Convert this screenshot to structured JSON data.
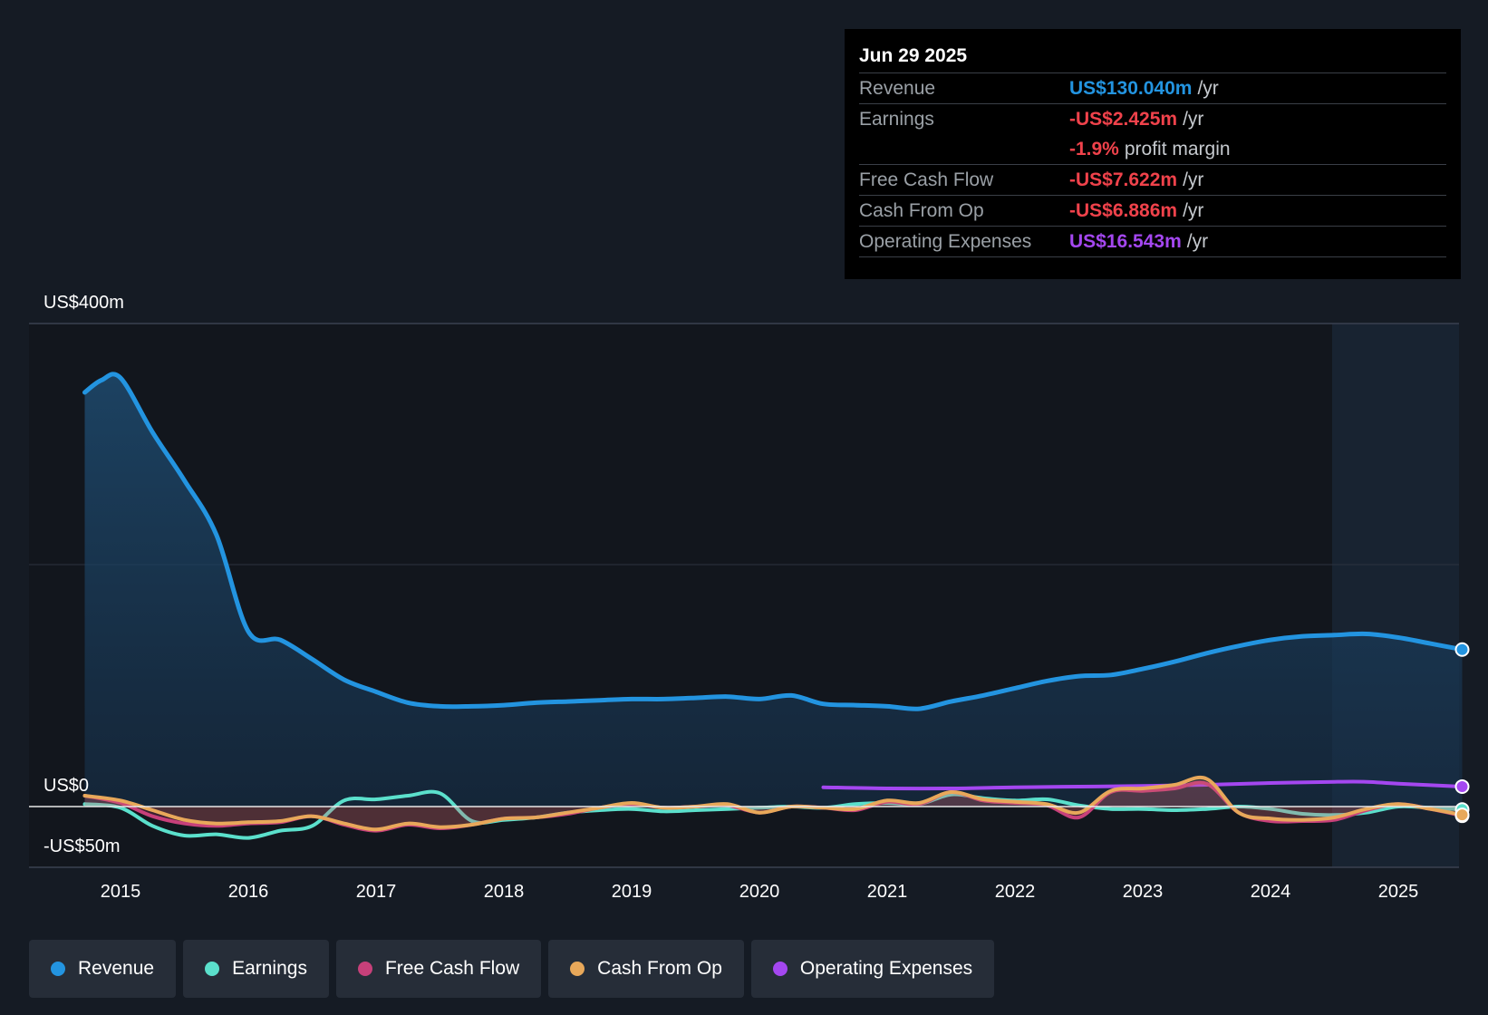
{
  "tooltip": {
    "date": "Jun 29 2025",
    "rows": [
      {
        "label": "Revenue",
        "value": "US$130.040m",
        "unit": "/yr",
        "color": "#2394e0"
      },
      {
        "label": "Earnings",
        "value": "-US$2.425m",
        "unit": "/yr",
        "color": "#f0424b"
      },
      {
        "label": "",
        "value": "-1.9%",
        "unit": "profit margin",
        "color": "#f0424b"
      },
      {
        "label": "Free Cash Flow",
        "value": "-US$7.622m",
        "unit": "/yr",
        "color": "#f0424b"
      },
      {
        "label": "Cash From Op",
        "value": "-US$6.886m",
        "unit": "/yr",
        "color": "#f0424b"
      },
      {
        "label": "Operating Expenses",
        "value": "US$16.543m",
        "unit": "/yr",
        "color": "#a447f0"
      }
    ]
  },
  "legend": [
    {
      "label": "Revenue",
      "color": "#2394e0"
    },
    {
      "label": "Earnings",
      "color": "#5be0cc"
    },
    {
      "label": "Free Cash Flow",
      "color": "#c7407a"
    },
    {
      "label": "Cash From Op",
      "color": "#e8a85a"
    },
    {
      "label": "Operating Expenses",
      "color": "#a447f0"
    }
  ],
  "chart_data": {
    "type": "line",
    "y_tick_labels": [
      "US$400m",
      "US$0",
      "-US$50m"
    ],
    "ylim": [
      -50,
      400
    ],
    "xlim": [
      2014.27,
      2025.5
    ],
    "x_ticks": [
      "2015",
      "2016",
      "2017",
      "2018",
      "2019",
      "2020",
      "2021",
      "2022",
      "2023",
      "2024",
      "2025"
    ],
    "grid": true,
    "legend_position": "bottom",
    "series": [
      {
        "name": "Revenue",
        "color": "#2394e0",
        "area": true,
        "points": [
          [
            2014.72,
            343
          ],
          [
            2014.85,
            353
          ],
          [
            2015.0,
            355
          ],
          [
            2015.25,
            310
          ],
          [
            2015.5,
            270
          ],
          [
            2015.75,
            225
          ],
          [
            2016.0,
            145
          ],
          [
            2016.25,
            138
          ],
          [
            2016.5,
            122
          ],
          [
            2016.75,
            105
          ],
          [
            2017.0,
            95
          ],
          [
            2017.25,
            86
          ],
          [
            2017.5,
            83
          ],
          [
            2017.75,
            83
          ],
          [
            2018.0,
            84
          ],
          [
            2018.25,
            86
          ],
          [
            2018.5,
            87
          ],
          [
            2018.75,
            88
          ],
          [
            2019.0,
            89
          ],
          [
            2019.25,
            89
          ],
          [
            2019.5,
            90
          ],
          [
            2019.75,
            91
          ],
          [
            2020.0,
            89
          ],
          [
            2020.25,
            92
          ],
          [
            2020.5,
            85
          ],
          [
            2020.75,
            84
          ],
          [
            2021.0,
            83
          ],
          [
            2021.25,
            81
          ],
          [
            2021.5,
            87
          ],
          [
            2021.75,
            92
          ],
          [
            2022.0,
            98
          ],
          [
            2022.25,
            104
          ],
          [
            2022.5,
            108
          ],
          [
            2022.75,
            109
          ],
          [
            2023.0,
            114
          ],
          [
            2023.25,
            120
          ],
          [
            2023.5,
            127
          ],
          [
            2023.75,
            133
          ],
          [
            2024.0,
            138
          ],
          [
            2024.25,
            141
          ],
          [
            2024.5,
            142
          ],
          [
            2024.75,
            143
          ],
          [
            2025.0,
            140
          ],
          [
            2025.25,
            135
          ],
          [
            2025.5,
            130.04
          ]
        ]
      },
      {
        "name": "Earnings",
        "color": "#5be0cc",
        "points": [
          [
            2014.72,
            2
          ],
          [
            2015.0,
            -1
          ],
          [
            2015.25,
            -16
          ],
          [
            2015.5,
            -24
          ],
          [
            2015.75,
            -23
          ],
          [
            2016.0,
            -26
          ],
          [
            2016.25,
            -20
          ],
          [
            2016.5,
            -16
          ],
          [
            2016.75,
            5
          ],
          [
            2017.0,
            6
          ],
          [
            2017.25,
            9
          ],
          [
            2017.5,
            11
          ],
          [
            2017.75,
            -12
          ],
          [
            2018.0,
            -11
          ],
          [
            2018.25,
            -9
          ],
          [
            2018.5,
            -5
          ],
          [
            2018.75,
            -3
          ],
          [
            2019.0,
            -2
          ],
          [
            2019.25,
            -4
          ],
          [
            2019.5,
            -3
          ],
          [
            2019.75,
            -2
          ],
          [
            2020.0,
            -1
          ],
          [
            2020.25,
            0
          ],
          [
            2020.5,
            -1
          ],
          [
            2020.75,
            2
          ],
          [
            2021.0,
            3
          ],
          [
            2021.25,
            2
          ],
          [
            2021.5,
            10
          ],
          [
            2021.75,
            7
          ],
          [
            2022.0,
            5
          ],
          [
            2022.25,
            6
          ],
          [
            2022.5,
            1
          ],
          [
            2022.75,
            -2
          ],
          [
            2023.0,
            -2
          ],
          [
            2023.25,
            -3
          ],
          [
            2023.5,
            -2
          ],
          [
            2023.75,
            0
          ],
          [
            2024.0,
            -2
          ],
          [
            2024.25,
            -6
          ],
          [
            2024.5,
            -7
          ],
          [
            2024.75,
            -5
          ],
          [
            2025.0,
            0
          ],
          [
            2025.25,
            -1
          ],
          [
            2025.5,
            -2.425
          ]
        ]
      },
      {
        "name": "Free Cash Flow",
        "color": "#c7407a",
        "points": [
          [
            2014.72,
            9
          ],
          [
            2015.0,
            3
          ],
          [
            2015.25,
            -8
          ],
          [
            2015.5,
            -14
          ],
          [
            2015.75,
            -16
          ],
          [
            2016.0,
            -14
          ],
          [
            2016.25,
            -13
          ],
          [
            2016.5,
            -8
          ],
          [
            2016.75,
            -15
          ],
          [
            2017.0,
            -20
          ],
          [
            2017.25,
            -15
          ],
          [
            2017.5,
            -18
          ],
          [
            2017.75,
            -15
          ],
          [
            2018.0,
            -10
          ],
          [
            2018.25,
            -9
          ],
          [
            2018.5,
            -6
          ],
          [
            2018.75,
            -1
          ],
          [
            2019.0,
            2
          ],
          [
            2019.25,
            -1
          ],
          [
            2019.5,
            0
          ],
          [
            2019.75,
            1
          ],
          [
            2020.0,
            -5
          ],
          [
            2020.25,
            0
          ],
          [
            2020.5,
            -1
          ],
          [
            2020.75,
            -3
          ],
          [
            2021.0,
            4
          ],
          [
            2021.25,
            2
          ],
          [
            2021.5,
            12
          ],
          [
            2021.75,
            5
          ],
          [
            2022.0,
            3
          ],
          [
            2022.25,
            1
          ],
          [
            2022.5,
            -9
          ],
          [
            2022.75,
            12
          ],
          [
            2023.0,
            13
          ],
          [
            2023.25,
            15
          ],
          [
            2023.5,
            19
          ],
          [
            2023.75,
            -5
          ],
          [
            2024.0,
            -12
          ],
          [
            2024.25,
            -12
          ],
          [
            2024.5,
            -11
          ],
          [
            2024.75,
            -3
          ],
          [
            2025.0,
            2
          ],
          [
            2025.25,
            -2
          ],
          [
            2025.5,
            -7.622
          ]
        ]
      },
      {
        "name": "Cash From Op",
        "color": "#e8a85a",
        "points": [
          [
            2014.72,
            9
          ],
          [
            2015.0,
            5
          ],
          [
            2015.25,
            -3
          ],
          [
            2015.5,
            -11
          ],
          [
            2015.75,
            -14
          ],
          [
            2016.0,
            -13
          ],
          [
            2016.25,
            -12
          ],
          [
            2016.5,
            -8
          ],
          [
            2016.75,
            -14
          ],
          [
            2017.0,
            -19
          ],
          [
            2017.25,
            -14
          ],
          [
            2017.5,
            -17
          ],
          [
            2017.75,
            -15
          ],
          [
            2018.0,
            -10
          ],
          [
            2018.25,
            -9
          ],
          [
            2018.5,
            -5
          ],
          [
            2018.75,
            -1
          ],
          [
            2019.0,
            3
          ],
          [
            2019.25,
            -1
          ],
          [
            2019.5,
            0
          ],
          [
            2019.75,
            2
          ],
          [
            2020.0,
            -5
          ],
          [
            2020.25,
            0
          ],
          [
            2020.5,
            -1
          ],
          [
            2020.75,
            -2
          ],
          [
            2021.0,
            5
          ],
          [
            2021.25,
            3
          ],
          [
            2021.5,
            12
          ],
          [
            2021.75,
            6
          ],
          [
            2022.0,
            4
          ],
          [
            2022.25,
            2
          ],
          [
            2022.5,
            -5
          ],
          [
            2022.75,
            13
          ],
          [
            2023.0,
            15
          ],
          [
            2023.25,
            18
          ],
          [
            2023.5,
            23
          ],
          [
            2023.75,
            -5
          ],
          [
            2024.0,
            -10
          ],
          [
            2024.25,
            -11
          ],
          [
            2024.5,
            -9
          ],
          [
            2024.75,
            -2
          ],
          [
            2025.0,
            2
          ],
          [
            2025.25,
            -2
          ],
          [
            2025.5,
            -6.886
          ]
        ]
      },
      {
        "name": "Operating Expenses",
        "color": "#a447f0",
        "points": [
          [
            2020.5,
            16
          ],
          [
            2021.0,
            15
          ],
          [
            2021.5,
            15
          ],
          [
            2022.0,
            16
          ],
          [
            2022.5,
            16.5
          ],
          [
            2023.0,
            17
          ],
          [
            2023.5,
            18
          ],
          [
            2024.0,
            19.5
          ],
          [
            2024.5,
            20.5
          ],
          [
            2024.75,
            20.5
          ],
          [
            2025.0,
            19
          ],
          [
            2025.5,
            16.543
          ]
        ]
      }
    ]
  }
}
